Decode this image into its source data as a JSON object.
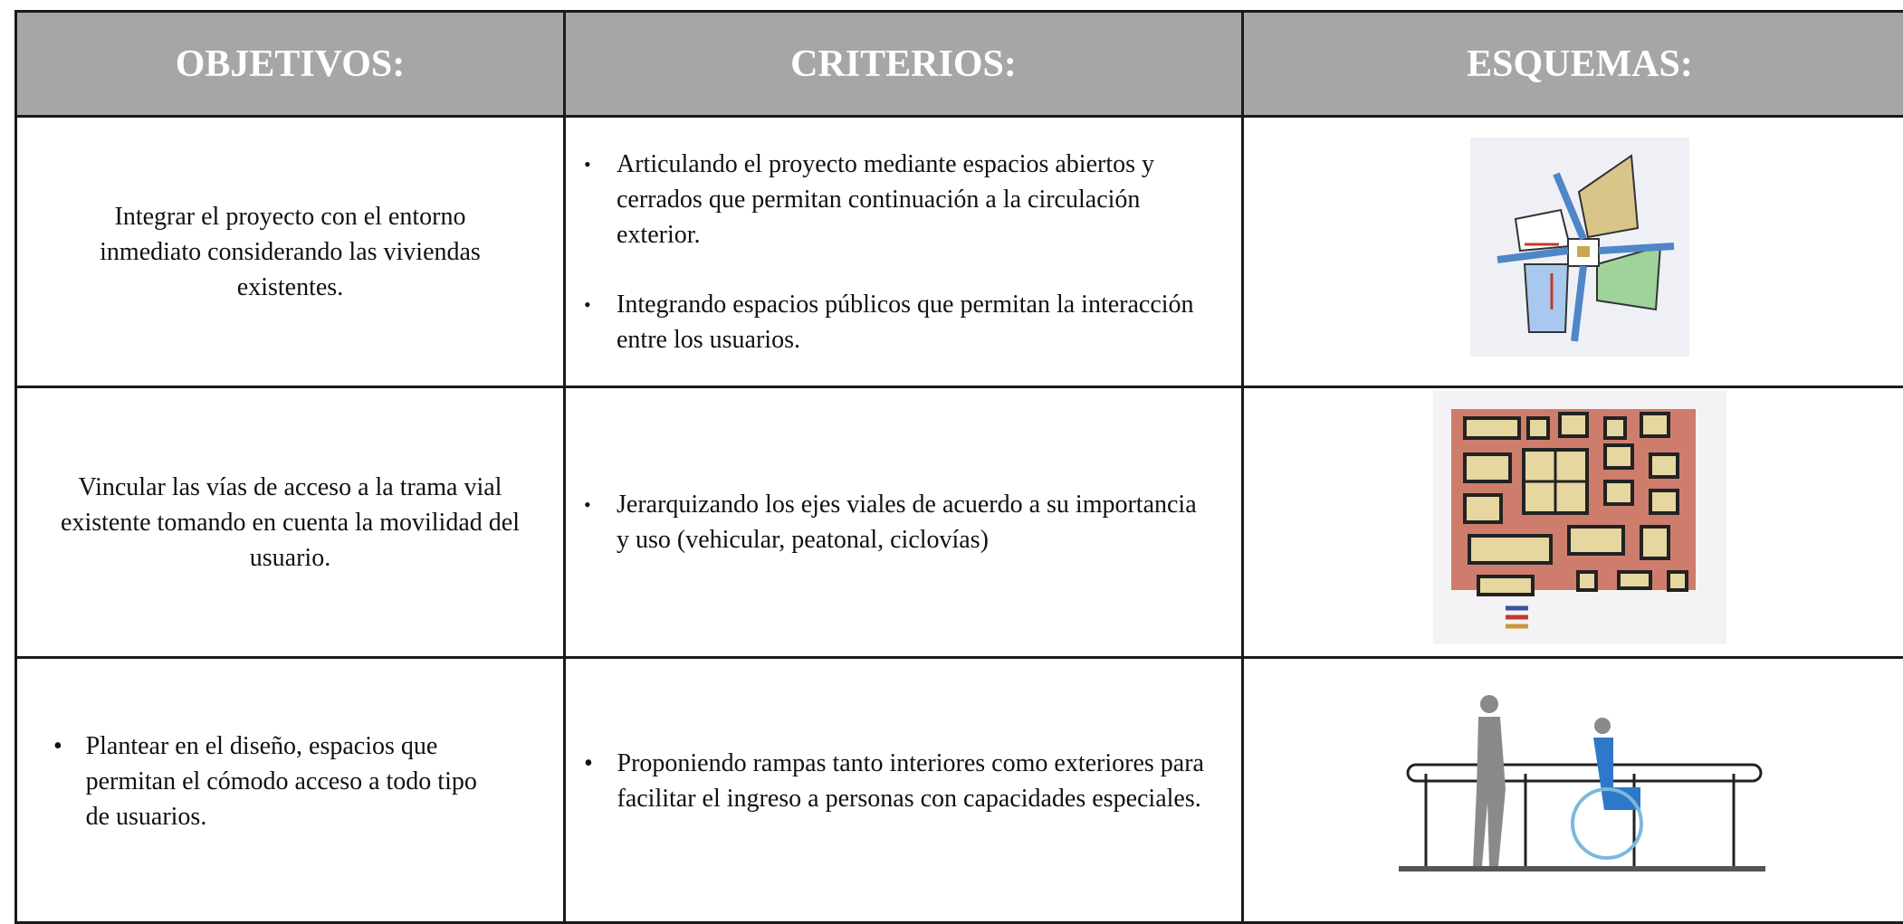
{
  "table": {
    "headers": [
      "OBJETIVOS:",
      "CRITERIOS:",
      "ESQUEMAS:"
    ],
    "rows": [
      {
        "objective": "Integrar el proyecto con el entorno inmediato considerando las viviendas existentes.",
        "criteria": [
          "Articulando el proyecto mediante espacios abiertos y cerrados que permitan continuación a la circulación exterior.",
          "Integrando espacios públicos que permitan la interacción entre los usuarios."
        ]
      },
      {
        "objective": "Vincular las vías de acceso a la trama vial existente tomando en cuenta la movilidad del usuario.",
        "criteria": [
          "Jerarquizando los ejes viales de acuerdo a su importancia y uso (vehicular, peatonal, ciclovías)"
        ]
      },
      {
        "objective": "Plantear en el diseño, espacios que permitan el cómodo acceso a todo tipo de usuarios.",
        "criteria": [
          "Proponiendo  rampas  tanto interiores como exteriores para facilitar el ingreso a personas con capacidades especiales."
        ]
      }
    ]
  }
}
